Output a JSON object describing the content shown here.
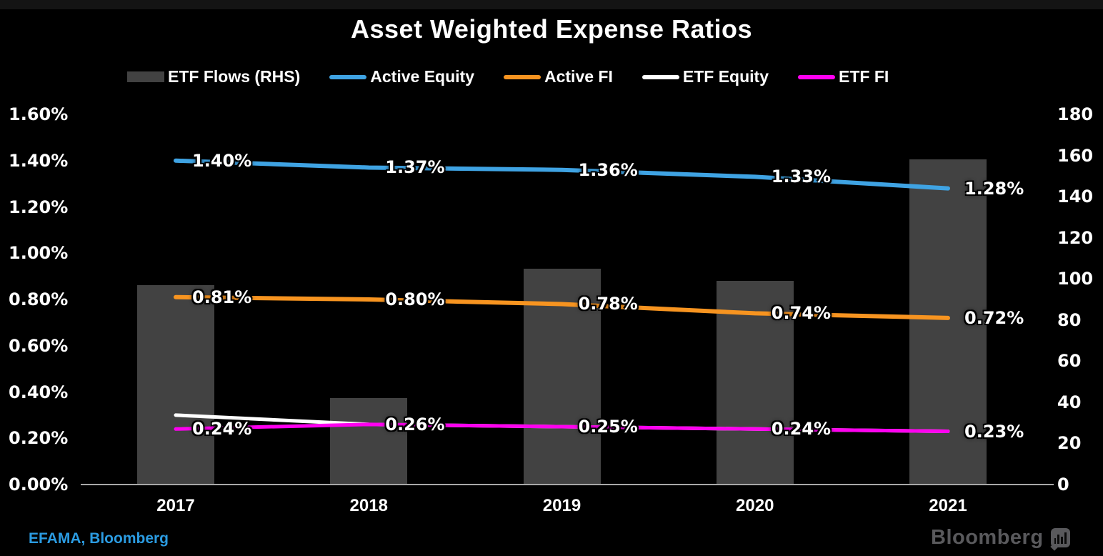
{
  "title": "Asset Weighted Expense Ratios",
  "legend": {
    "items": [
      {
        "label": "ETF Flows (RHS)",
        "color": "#424242",
        "swatch": "bar"
      },
      {
        "label": "Active Equity",
        "color": "#3fa3e3",
        "swatch": "line"
      },
      {
        "label": "Active FI",
        "color": "#f79420",
        "swatch": "line"
      },
      {
        "label": "ETF Equity",
        "color": "#ffffff",
        "swatch": "line"
      },
      {
        "label": "ETF FI",
        "color": "#ff00f0",
        "swatch": "line"
      }
    ]
  },
  "chart_data": {
    "type": "combo-bar-line",
    "title": "Asset Weighted Expense Ratios",
    "categories": [
      "2017",
      "2018",
      "2019",
      "2020",
      "2021"
    ],
    "grid": false,
    "legend_position": "top",
    "left_axis": {
      "ticks": [
        "1.60%",
        "1.40%",
        "1.20%",
        "1.00%",
        "0.80%",
        "0.60%",
        "0.40%",
        "0.20%",
        "0.00%"
      ],
      "min": 0,
      "max": 1.6,
      "unit": "%"
    },
    "right_axis": {
      "ticks": [
        "180",
        "160",
        "140",
        "120",
        "100",
        "80",
        "60",
        "40",
        "20",
        "0"
      ],
      "min": 0,
      "max": 180
    },
    "bar_series": {
      "name": "ETF Flows (RHS)",
      "axis": "right",
      "color": "#424242",
      "values": [
        97,
        42,
        105,
        99,
        158
      ]
    },
    "line_series": [
      {
        "name": "ETF Equity",
        "axis": "left",
        "color": "#ffffff",
        "stroke_width": 5,
        "values": [
          0.3,
          0.26,
          0.25,
          0.24,
          0.23
        ],
        "labels": [
          "",
          "",
          "",
          "",
          ""
        ]
      },
      {
        "name": "ETF FI",
        "axis": "left",
        "color": "#ff00f0",
        "stroke_width": 5,
        "values": [
          0.24,
          0.26,
          0.25,
          0.24,
          0.23
        ],
        "labels": [
          "0.24%",
          "0.26%",
          "0.25%",
          "0.24%",
          "0.23%"
        ]
      },
      {
        "name": "Active Equity",
        "axis": "left",
        "color": "#3fa3e3",
        "stroke_width": 6,
        "values": [
          1.4,
          1.37,
          1.36,
          1.33,
          1.28
        ],
        "labels": [
          "1.40%",
          "1.37%",
          "1.36%",
          "1.33%",
          "1.28%"
        ]
      },
      {
        "name": "Active FI",
        "axis": "left",
        "color": "#f79420",
        "stroke_width": 6,
        "values": [
          0.81,
          0.8,
          0.78,
          0.74,
          0.72
        ],
        "labels": [
          "0.81%",
          "0.80%",
          "0.78%",
          "0.74%",
          "0.72%"
        ]
      }
    ]
  },
  "footer": {
    "source": "EFAMA, Bloomberg",
    "brand": "Bloomberg"
  }
}
